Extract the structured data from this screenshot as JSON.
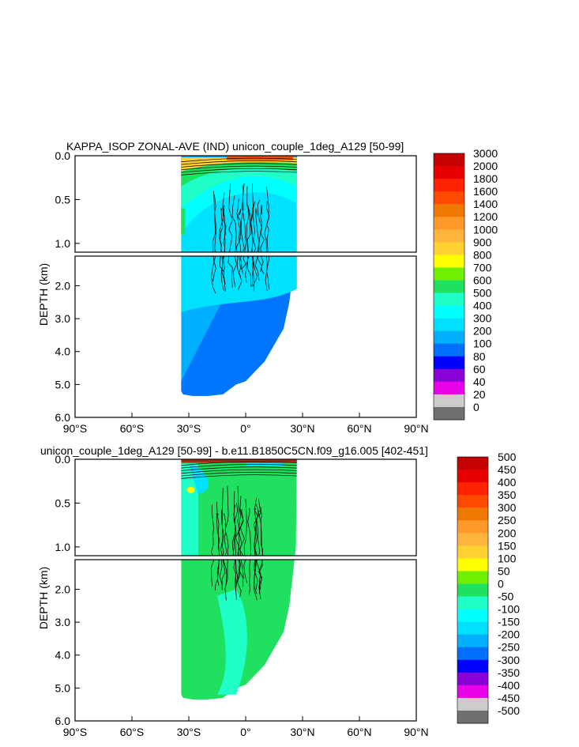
{
  "chart_data": [
    {
      "type": "heatmap",
      "title": "KAPPA_ISOP ZONAL-AVE (IND) unicon_couple_1deg_A129 [50-99]",
      "ylabel": "DEPTH (km)",
      "xlabel": "",
      "x_ticks": [
        "90°S",
        "60°S",
        "30°S",
        "0°",
        "30°N",
        "60°N",
        "90°N"
      ],
      "y_ticks_upper": [
        "0.0",
        "0.5",
        "1.0"
      ],
      "y_ticks_lower": [
        "2.0",
        "3.0",
        "4.0",
        "5.0",
        "6.0"
      ],
      "xlim": [
        -90,
        90
      ],
      "ylim_upper": [
        0,
        1.1
      ],
      "ylim_lower": [
        1.1,
        6.0
      ],
      "data_extent_lat": [
        -34,
        27
      ],
      "colorbar": {
        "labels": [
          "3000",
          "2000",
          "1800",
          "1600",
          "1400",
          "1200",
          "1000",
          "900",
          "800",
          "700",
          "600",
          "500",
          "400",
          "300",
          "200",
          "100",
          "80",
          "60",
          "40",
          "20",
          "0"
        ],
        "colors": [
          "#c40000",
          "#e60000",
          "#ff2200",
          "#ff4a00",
          "#f07800",
          "#ff9a2a",
          "#ffb43c",
          "#ffd030",
          "#ffff00",
          "#70f000",
          "#20e060",
          "#20ffc8",
          "#00ffff",
          "#00e0ff",
          "#00b0ff",
          "#0070ff",
          "#0000ff",
          "#8c00d8",
          "#e800e8",
          "#cccccc",
          "#707070"
        ]
      }
    },
    {
      "type": "heatmap",
      "title": "unicon_couple_1deg_A129 [50-99] - b.e11.B1850C5CN.f09_g16.005 [402-451]",
      "ylabel": "DEPTH (km)",
      "xlabel": "",
      "x_ticks": [
        "90°S",
        "60°S",
        "30°S",
        "0°",
        "30°N",
        "60°N",
        "90°N"
      ],
      "y_ticks_upper": [
        "0.0",
        "0.5",
        "1.0"
      ],
      "y_ticks_lower": [
        "2.0",
        "3.0",
        "4.0",
        "5.0",
        "6.0"
      ],
      "xlim": [
        -90,
        90
      ],
      "ylim_upper": [
        0,
        1.1
      ],
      "ylim_lower": [
        1.1,
        6.0
      ],
      "data_extent_lat": [
        -34,
        27
      ],
      "colorbar": {
        "labels": [
          "500",
          "450",
          "400",
          "350",
          "300",
          "250",
          "200",
          "150",
          "100",
          "50",
          "0",
          "-50",
          "-100",
          "-150",
          "-200",
          "-250",
          "-300",
          "-350",
          "-400",
          "-450",
          "-500"
        ],
        "colors": [
          "#c40000",
          "#e60000",
          "#ff2200",
          "#ff4a00",
          "#f07800",
          "#ff9a2a",
          "#ffb43c",
          "#ffd030",
          "#ffff00",
          "#70f000",
          "#20e060",
          "#20ffc8",
          "#00ffff",
          "#00e0ff",
          "#00b0ff",
          "#0070ff",
          "#0000ff",
          "#8c00d8",
          "#e800e8",
          "#cccccc",
          "#707070"
        ]
      }
    }
  ]
}
